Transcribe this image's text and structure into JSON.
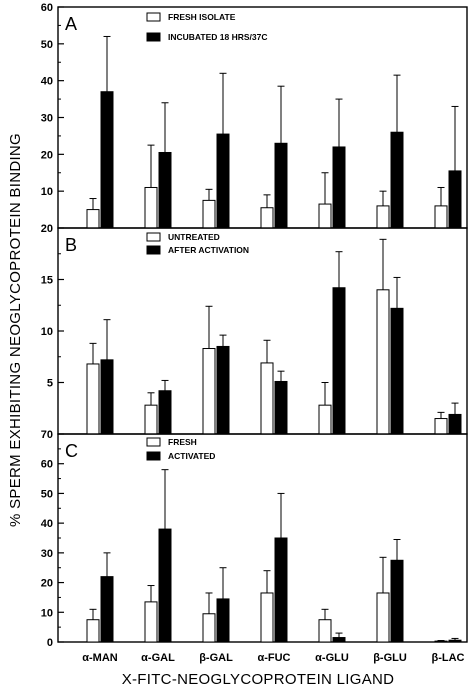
{
  "chart_data": {
    "type": "bar",
    "ylabel": "% SPERM EXHIBITING NEOGLYCOPROTEIN BINDING",
    "xlabel": "X-FITC-NEOGLYCOPROTEIN LIGAND",
    "categories": [
      "α-MAN",
      "α-GAL",
      "β-GAL",
      "α-FUC",
      "α-GLU",
      "β-GLU",
      "β-LAC"
    ],
    "colors": {
      "open": "#ffffff",
      "filled": "#000000"
    },
    "panels": [
      {
        "label": "A",
        "ylim": [
          0,
          60
        ],
        "yticks": [
          "10",
          "20",
          "30",
          "40",
          "50",
          "60"
        ],
        "legend": [
          "FRESH ISOLATE",
          "INCUBATED 18 HRS/37C"
        ],
        "series": [
          {
            "name": "FRESH ISOLATE",
            "fill": "open",
            "values": [
              5,
              11,
              7.5,
              5.5,
              6.5,
              6,
              6
            ],
            "errors": [
              3,
              11.5,
              3,
              3.5,
              8.5,
              4,
              5
            ]
          },
          {
            "name": "INCUBATED 18 HRS/37C",
            "fill": "filled",
            "values": [
              37,
              20.5,
              25.5,
              23,
              22,
              26,
              15.5
            ],
            "errors": [
              15,
              13.5,
              16.5,
              15.5,
              13,
              15.5,
              17.5
            ]
          }
        ]
      },
      {
        "label": "B",
        "ylim": [
          0,
          20
        ],
        "yticks": [
          "5",
          "10",
          "15",
          "20"
        ],
        "legend": [
          "UNTREATED",
          "AFTER ACTIVATION"
        ],
        "series": [
          {
            "name": "UNTREATED",
            "fill": "open",
            "values": [
              6.8,
              2.8,
              8.3,
              6.9,
              2.8,
              14.0,
              1.5
            ],
            "errors": [
              2,
              1.2,
              4.1,
              2.2,
              2.2,
              4.9,
              0.6
            ]
          },
          {
            "name": "AFTER ACTIVATION",
            "fill": "filled",
            "values": [
              7.2,
              4.2,
              8.5,
              5.1,
              14.2,
              12.2,
              1.9
            ],
            "errors": [
              3.9,
              1.0,
              1.1,
              1.0,
              3.5,
              3.0,
              1.1
            ]
          }
        ]
      },
      {
        "label": "C",
        "ylim": [
          0,
          70
        ],
        "yticks": [
          "0",
          "10",
          "20",
          "30",
          "40",
          "50",
          "60",
          "70"
        ],
        "legend": [
          "FRESH",
          "ACTIVATED"
        ],
        "series": [
          {
            "name": "FRESH",
            "fill": "open",
            "values": [
              7.5,
              13.5,
              9.5,
              16.5,
              7.5,
              16.5,
              0.3
            ],
            "errors": [
              3.5,
              5.5,
              7.0,
              7.5,
              3.5,
              12,
              0.2
            ]
          },
          {
            "name": "ACTIVATED",
            "fill": "filled",
            "values": [
              22,
              38,
              14.5,
              35,
              1.5,
              27.5,
              0.6
            ],
            "errors": [
              8,
              20,
              10.5,
              15,
              1.5,
              7,
              0.6
            ]
          }
        ]
      }
    ]
  }
}
